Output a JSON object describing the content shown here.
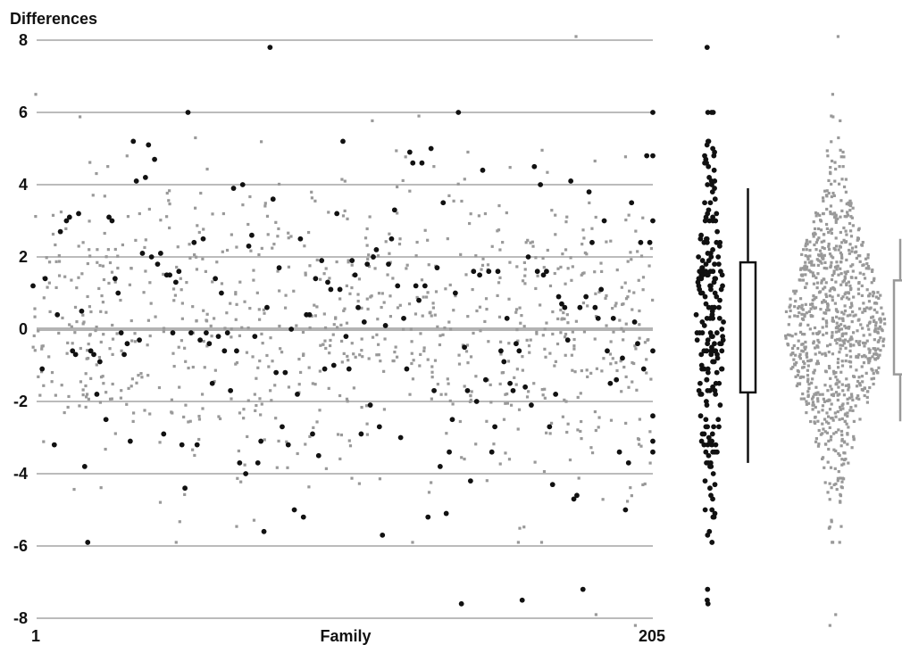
{
  "chart_data": {
    "type": "scatter",
    "ylabel": "Differences",
    "xlabel": "Family",
    "x_tick_labels": [
      "1",
      "205"
    ],
    "xlim": [
      1,
      205
    ],
    "ylim": [
      -8,
      8
    ],
    "y_ticks": [
      8,
      6,
      4,
      2,
      0,
      -2,
      -4,
      -6,
      -8
    ],
    "y_tick_labels": [
      "8",
      "6",
      "4",
      "2",
      "0",
      "-2",
      "-4",
      "-6",
      "-8"
    ],
    "grid": true,
    "colors": {
      "family_points": "#111111",
      "individual_points": "#999999",
      "gridline": "#bbbbbb",
      "zero_line": "#b3b3b3"
    },
    "series": [
      {
        "role": "family",
        "marker": "circle",
        "points": [
          [
            1,
            1.2
          ],
          [
            4,
            -1.1
          ],
          [
            5,
            1.4
          ],
          [
            8,
            -3.2
          ],
          [
            9,
            0.4
          ],
          [
            10,
            2.7
          ],
          [
            12,
            3.0
          ],
          [
            13,
            3.1
          ],
          [
            14,
            -0.6
          ],
          [
            15,
            -0.7
          ],
          [
            16,
            3.2
          ],
          [
            17,
            0.5
          ],
          [
            18,
            -3.8
          ],
          [
            19,
            -5.9
          ],
          [
            20,
            -0.6
          ],
          [
            21,
            -0.7
          ],
          [
            22,
            -1.8
          ],
          [
            23,
            -0.9
          ],
          [
            25,
            -2.5
          ],
          [
            26,
            3.1
          ],
          [
            27,
            3.0
          ],
          [
            28,
            1.4
          ],
          [
            29,
            1.0
          ],
          [
            30,
            -0.1
          ],
          [
            31,
            -0.7
          ],
          [
            32,
            -0.4
          ],
          [
            33,
            -3.1
          ],
          [
            34,
            5.2
          ],
          [
            35,
            4.1
          ],
          [
            36,
            -0.3
          ],
          [
            37,
            2.1
          ],
          [
            38,
            4.2
          ],
          [
            39,
            5.1
          ],
          [
            40,
            2.0
          ],
          [
            41,
            4.7
          ],
          [
            42,
            1.8
          ],
          [
            43,
            2.1
          ],
          [
            44,
            -2.9
          ],
          [
            45,
            1.5
          ],
          [
            46,
            1.5
          ],
          [
            47,
            -0.1
          ],
          [
            48,
            1.3
          ],
          [
            49,
            1.6
          ],
          [
            50,
            -3.2
          ],
          [
            51,
            -4.4
          ],
          [
            52,
            6.0
          ],
          [
            53,
            -0.1
          ],
          [
            54,
            2.4
          ],
          [
            55,
            -3.2
          ],
          [
            56,
            -0.3
          ],
          [
            57,
            2.5
          ],
          [
            58,
            -0.1
          ],
          [
            59,
            -0.4
          ],
          [
            60,
            -1.5
          ],
          [
            61,
            1.4
          ],
          [
            62,
            -0.2
          ],
          [
            63,
            1.0
          ],
          [
            64,
            -0.6
          ],
          [
            65,
            -0.1
          ],
          [
            66,
            -1.7
          ],
          [
            67,
            3.9
          ],
          [
            68,
            -0.6
          ],
          [
            69,
            -3.7
          ],
          [
            70,
            4.0
          ],
          [
            71,
            -4.0
          ],
          [
            72,
            2.3
          ],
          [
            73,
            2.6
          ],
          [
            74,
            -0.2
          ],
          [
            75,
            -3.7
          ],
          [
            76,
            -3.1
          ],
          [
            77,
            -5.6
          ],
          [
            78,
            0.6
          ],
          [
            79,
            7.8
          ],
          [
            80,
            3.6
          ],
          [
            81,
            -1.2
          ],
          [
            82,
            1.7
          ],
          [
            83,
            -2.7
          ],
          [
            84,
            -1.2
          ],
          [
            85,
            -3.2
          ],
          [
            86,
            0.0
          ],
          [
            87,
            -5.0
          ],
          [
            88,
            -1.8
          ],
          [
            89,
            2.5
          ],
          [
            90,
            -5.2
          ],
          [
            91,
            0.4
          ],
          [
            92,
            0.4
          ],
          [
            93,
            -2.9
          ],
          [
            94,
            1.4
          ],
          [
            95,
            -3.5
          ],
          [
            96,
            1.9
          ],
          [
            97,
            -1.1
          ],
          [
            98,
            1.3
          ],
          [
            99,
            1.1
          ],
          [
            100,
            -1.0
          ],
          [
            101,
            3.2
          ],
          [
            102,
            1.1
          ],
          [
            103,
            5.2
          ],
          [
            104,
            -0.2
          ],
          [
            105,
            -1.1
          ],
          [
            106,
            1.9
          ],
          [
            107,
            1.5
          ],
          [
            108,
            0.6
          ],
          [
            109,
            -2.9
          ],
          [
            110,
            0.2
          ],
          [
            111,
            1.8
          ],
          [
            112,
            -2.1
          ],
          [
            113,
            2.0
          ],
          [
            114,
            2.2
          ],
          [
            115,
            -2.7
          ],
          [
            116,
            -5.7
          ],
          [
            117,
            0.1
          ],
          [
            118,
            1.8
          ],
          [
            119,
            2.5
          ],
          [
            120,
            3.3
          ],
          [
            121,
            1.2
          ],
          [
            122,
            -3.0
          ],
          [
            123,
            0.3
          ],
          [
            124,
            -1.1
          ],
          [
            125,
            4.9
          ],
          [
            126,
            4.6
          ],
          [
            127,
            1.2
          ],
          [
            128,
            0.8
          ],
          [
            129,
            4.6
          ],
          [
            130,
            1.2
          ],
          [
            131,
            -5.2
          ],
          [
            132,
            5.0
          ],
          [
            133,
            -1.7
          ],
          [
            134,
            1.7
          ],
          [
            135,
            -3.8
          ],
          [
            136,
            3.5
          ],
          [
            137,
            -5.1
          ],
          [
            138,
            -3.4
          ],
          [
            139,
            -2.5
          ],
          [
            140,
            1.0
          ],
          [
            141,
            6.0
          ],
          [
            142,
            -7.6
          ],
          [
            143,
            -0.5
          ],
          [
            144,
            -1.7
          ],
          [
            145,
            -4.2
          ],
          [
            146,
            1.6
          ],
          [
            147,
            -2.0
          ],
          [
            148,
            1.5
          ],
          [
            149,
            4.4
          ],
          [
            150,
            -1.4
          ],
          [
            151,
            1.6
          ],
          [
            152,
            -3.4
          ],
          [
            153,
            -2.7
          ],
          [
            154,
            1.6
          ],
          [
            155,
            -0.6
          ],
          [
            156,
            -0.9
          ],
          [
            157,
            0.3
          ],
          [
            158,
            -1.5
          ],
          [
            159,
            -1.7
          ],
          [
            160,
            -0.4
          ],
          [
            161,
            -0.6
          ],
          [
            162,
            -7.5
          ],
          [
            163,
            -1.6
          ],
          [
            164,
            2.0
          ],
          [
            165,
            -2.1
          ],
          [
            166,
            4.5
          ],
          [
            167,
            1.6
          ],
          [
            168,
            4.0
          ],
          [
            169,
            1.5
          ],
          [
            170,
            1.6
          ],
          [
            171,
            -2.7
          ],
          [
            172,
            -4.3
          ],
          [
            173,
            -1.8
          ],
          [
            174,
            0.9
          ],
          [
            175,
            0.7
          ],
          [
            176,
            0.6
          ],
          [
            177,
            -0.3
          ],
          [
            178,
            4.1
          ],
          [
            179,
            -4.7
          ],
          [
            180,
            -4.6
          ],
          [
            181,
            0.6
          ],
          [
            182,
            -7.2
          ],
          [
            183,
            0.9
          ],
          [
            184,
            3.8
          ],
          [
            185,
            2.4
          ],
          [
            186,
            0.6
          ],
          [
            187,
            0.3
          ],
          [
            188,
            1.1
          ],
          [
            189,
            3.0
          ],
          [
            190,
            -0.6
          ],
          [
            191,
            -1.5
          ],
          [
            192,
            0.3
          ],
          [
            193,
            -1.4
          ],
          [
            194,
            -3.4
          ],
          [
            195,
            -0.8
          ],
          [
            196,
            -5.0
          ],
          [
            197,
            -3.7
          ],
          [
            198,
            3.5
          ],
          [
            199,
            0.2
          ],
          [
            200,
            -0.4
          ],
          [
            201,
            2.4
          ],
          [
            202,
            -1.1
          ],
          [
            203,
            4.8
          ],
          [
            204,
            2.4
          ],
          [
            205,
            3.0
          ],
          [
            205,
            4.8
          ],
          [
            205,
            -2.4
          ],
          [
            205,
            6.0
          ],
          [
            205,
            -3.1
          ],
          [
            205,
            -3.4
          ],
          [
            205,
            -0.6
          ]
        ]
      },
      {
        "role": "individual",
        "marker": "square",
        "generated": true,
        "count": 900,
        "y_mean": 0.05,
        "y_sd": 2.1,
        "y_extremes": [
          8.1,
          -7.9,
          -8.2,
          6.5,
          -5.9
        ]
      }
    ],
    "summaries": [
      {
        "of": "family",
        "type": "box",
        "points_column": true,
        "whisker_top": 3.9,
        "q3": 1.85,
        "q1": -1.75,
        "whisker_bottom": -3.7
      },
      {
        "of": "individual",
        "type": "box",
        "points_column": true,
        "whisker_top": 2.5,
        "q3": 1.35,
        "q1": -1.25,
        "whisker_bottom": -2.55,
        "clipped": true
      }
    ]
  }
}
